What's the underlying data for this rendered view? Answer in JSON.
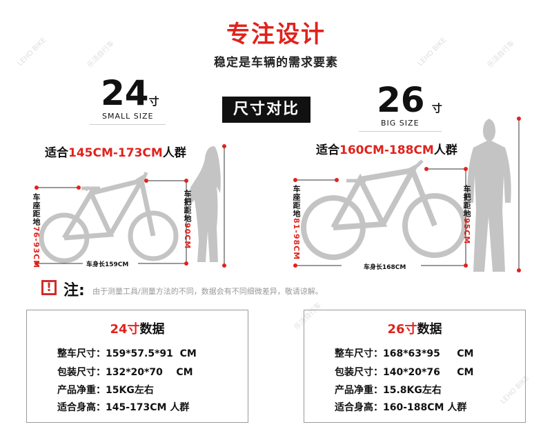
{
  "header": {
    "title": "专注设计",
    "subtitle": "稳定是车辆的需求要素",
    "compare_label": "尺寸对比"
  },
  "watermark": [
    "LEHO BIKE",
    "乐活自行车"
  ],
  "small": {
    "size": "24",
    "unit": "寸",
    "size_label": "SMALL SIZE",
    "fit_prefix": "适合",
    "fit_range": "145CM-173CM",
    "fit_suffix": "人群",
    "seat_label": "车座距地",
    "seat_value": "76-93CM",
    "bar_label": "车把距地",
    "bar_value": "90CM",
    "length_label": "车身长159CM"
  },
  "large": {
    "size": "26",
    "unit": "寸",
    "size_label": "BIG SIZE",
    "fit_prefix": "适合",
    "fit_range": "160CM-188CM",
    "fit_suffix": "人群",
    "seat_label": "车座距地",
    "seat_value": "81-98CM",
    "bar_label": "车把距地",
    "bar_value": "95CM",
    "length_label": "车身长168CM"
  },
  "note": {
    "icon": "exclamation-icon",
    "label": "注:",
    "text": "由于测量工具/测量方法的不同，数据会有不同细微差异，敬请谅解。"
  },
  "specs": [
    {
      "title_size": "24寸",
      "title_word": "数据",
      "rows": [
        "整车尺寸：159*57.5*91  CM",
        "包装尺寸：132*20*70    CM",
        "产品净重：15KG左右",
        "适合身高：145-173CM 人群"
      ]
    },
    {
      "title_size": "26寸",
      "title_word": "数据",
      "rows": [
        "整车尺寸：168*63*95     CM",
        "包装尺寸：140*20*76     CM",
        "产品净重：15.8KG左右",
        "适合身高：160-188CM 人群"
      ]
    }
  ],
  "colors": {
    "accent": "#e0221c",
    "silhouette": "#c4c4c4"
  }
}
